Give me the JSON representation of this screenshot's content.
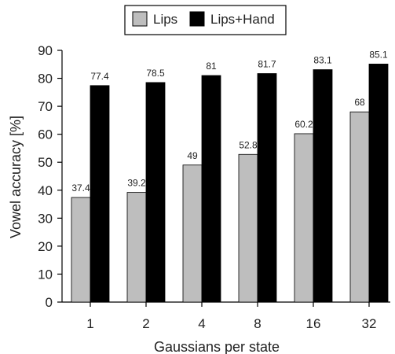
{
  "chart_data": {
    "type": "bar",
    "title": "",
    "xlabel": "Gaussians per state",
    "ylabel": "Vowel accuracy [%]",
    "ylim": [
      0,
      90
    ],
    "yticks": [
      0,
      10,
      20,
      30,
      40,
      50,
      60,
      70,
      80,
      90
    ],
    "grid": false,
    "legend_position": "top-center",
    "categories": [
      "1",
      "2",
      "4",
      "8",
      "16",
      "32"
    ],
    "series": [
      {
        "name": "Lips",
        "color": "#bebebe",
        "values": [
          37.4,
          39.2,
          49,
          52.8,
          60.2,
          68
        ],
        "labels": [
          "37.4",
          "39.2",
          "49",
          "52.8",
          "60.2",
          "68"
        ]
      },
      {
        "name": "Lips+Hand",
        "color": "#000000",
        "values": [
          77.4,
          78.5,
          81,
          81.7,
          83.1,
          85.1
        ],
        "labels": [
          "77.4",
          "78.5",
          "81",
          "81.7",
          "83.1",
          "85.1"
        ]
      }
    ]
  }
}
